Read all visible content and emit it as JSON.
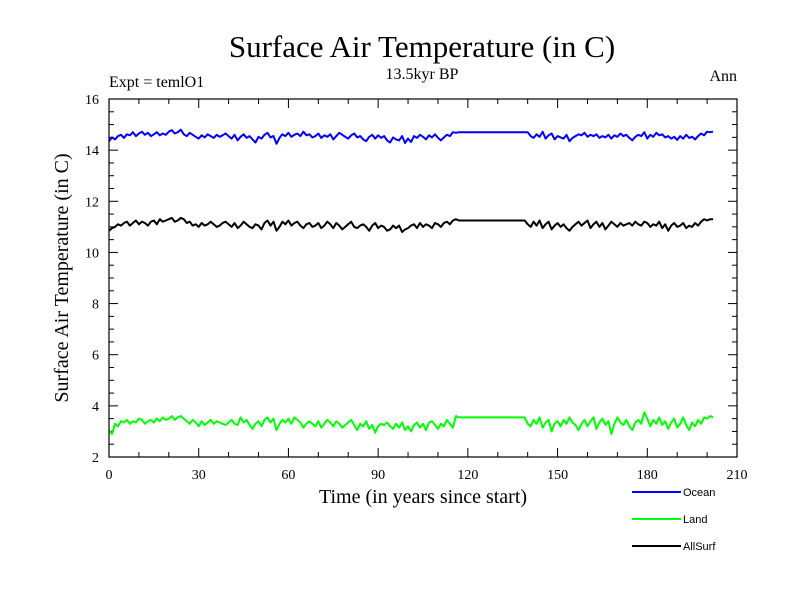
{
  "chart_data": {
    "type": "line",
    "title": "Surface Air Temperature (in C)",
    "subtitle": "13.5kyr BP",
    "left_note": "Expt = temlO1",
    "right_note": "Ann",
    "xlabel": "Time (in years since start)",
    "ylabel": "Surface Air Temperature (in C)",
    "xlim": [
      0,
      210
    ],
    "ylim": [
      2,
      16
    ],
    "xticks": [
      0,
      30,
      60,
      90,
      120,
      150,
      180,
      210
    ],
    "yticks": [
      2,
      4,
      6,
      8,
      10,
      12,
      14,
      16
    ],
    "x_minor_step": 10,
    "y_minor_step": 0.5,
    "x_start": 0,
    "x_step": 1,
    "legend_position": "bottom-right outside",
    "series": [
      {
        "name": "Ocean",
        "color": "#0000ff",
        "values": [
          14.35,
          14.5,
          14.42,
          14.55,
          14.6,
          14.48,
          14.62,
          14.58,
          14.7,
          14.55,
          14.65,
          14.72,
          14.6,
          14.68,
          14.55,
          14.62,
          14.7,
          14.58,
          14.65,
          14.6,
          14.72,
          14.78,
          14.65,
          14.7,
          14.8,
          14.62,
          14.55,
          14.68,
          14.6,
          14.52,
          14.45,
          14.58,
          14.5,
          14.62,
          14.55,
          14.48,
          14.6,
          14.52,
          14.58,
          14.65,
          14.55,
          14.45,
          14.6,
          14.38,
          14.52,
          14.62,
          14.48,
          14.55,
          14.42,
          14.3,
          14.52,
          14.45,
          14.6,
          14.68,
          14.5,
          14.55,
          14.25,
          14.48,
          14.62,
          14.55,
          14.68,
          14.52,
          14.6,
          14.65,
          14.55,
          14.72,
          14.58,
          14.62,
          14.5,
          14.55,
          14.65,
          14.48,
          14.58,
          14.52,
          14.62,
          14.42,
          14.55,
          14.68,
          14.6,
          14.52,
          14.45,
          14.58,
          14.65,
          14.5,
          14.55,
          14.42,
          14.35,
          14.52,
          14.6,
          14.45,
          14.58,
          14.48,
          14.55,
          14.38,
          14.3,
          14.5,
          14.42,
          14.38,
          14.55,
          14.28,
          14.45,
          14.32,
          14.55,
          14.48,
          14.6,
          14.52,
          14.42,
          14.58,
          14.5,
          14.62,
          14.48,
          14.38,
          14.5,
          14.6,
          14.55,
          14.7,
          14.68,
          14.7,
          14.7,
          14.7,
          14.7,
          14.7,
          14.7,
          14.7,
          14.7,
          14.7,
          14.7,
          14.7,
          14.7,
          14.7,
          14.7,
          14.7,
          14.7,
          14.7,
          14.7,
          14.7,
          14.7,
          14.7,
          14.7,
          14.7,
          14.7,
          14.55,
          14.48,
          14.62,
          14.52,
          14.72,
          14.45,
          14.58,
          14.65,
          14.42,
          14.55,
          14.5,
          14.45,
          14.6,
          14.35,
          14.48,
          14.55,
          14.62,
          14.58,
          14.68,
          14.52,
          14.6,
          14.55,
          14.62,
          14.48,
          14.55,
          14.5,
          14.6,
          14.45,
          14.58,
          14.52,
          14.65,
          14.55,
          14.6,
          14.48,
          14.38,
          14.52,
          14.6,
          14.55,
          14.7,
          14.45,
          14.6,
          14.52,
          14.68,
          14.58,
          14.62,
          14.5,
          14.55,
          14.45,
          14.52,
          14.4,
          14.55,
          14.45,
          14.6,
          14.48,
          14.52,
          14.42,
          14.55,
          14.65,
          14.58,
          14.72,
          14.7,
          14.72
        ]
      },
      {
        "name": "Land",
        "color": "#00ff00",
        "values": [
          3.05,
          2.9,
          3.3,
          3.2,
          3.4,
          3.35,
          3.45,
          3.3,
          3.4,
          3.35,
          3.5,
          3.45,
          3.3,
          3.4,
          3.45,
          3.35,
          3.5,
          3.4,
          3.55,
          3.45,
          3.5,
          3.6,
          3.45,
          3.55,
          3.6,
          3.5,
          3.4,
          3.3,
          3.45,
          3.35,
          3.2,
          3.4,
          3.25,
          3.35,
          3.45,
          3.3,
          3.4,
          3.35,
          3.3,
          3.25,
          3.35,
          3.45,
          3.3,
          3.25,
          3.55,
          3.35,
          3.45,
          3.25,
          3.1,
          3.3,
          3.4,
          3.2,
          3.45,
          3.55,
          3.35,
          3.5,
          3.05,
          3.3,
          3.45,
          3.35,
          3.5,
          3.3,
          3.55,
          3.45,
          3.35,
          3.15,
          3.3,
          3.4,
          3.3,
          3.2,
          3.4,
          3.15,
          3.3,
          3.45,
          3.35,
          3.2,
          3.4,
          3.3,
          3.15,
          3.25,
          3.35,
          3.45,
          3.25,
          3.05,
          3.3,
          3.2,
          3.4,
          3.1,
          3.25,
          2.95,
          3.2,
          3.3,
          3.25,
          3.35,
          3.2,
          3.1,
          3.3,
          3.15,
          3.35,
          3.05,
          3.2,
          3.0,
          3.25,
          3.35,
          3.15,
          3.3,
          3.05,
          3.35,
          3.4,
          3.25,
          3.1,
          3.3,
          3.2,
          3.45,
          3.3,
          3.15,
          3.6,
          3.55,
          3.55,
          3.55,
          3.55,
          3.55,
          3.55,
          3.55,
          3.55,
          3.55,
          3.55,
          3.55,
          3.55,
          3.55,
          3.55,
          3.55,
          3.55,
          3.55,
          3.55,
          3.55,
          3.55,
          3.55,
          3.55,
          3.55,
          3.3,
          3.2,
          3.45,
          3.3,
          3.55,
          3.15,
          3.35,
          3.45,
          3.0,
          3.3,
          3.4,
          3.2,
          3.45,
          3.3,
          3.55,
          3.35,
          3.25,
          3.05,
          3.3,
          3.45,
          3.2,
          3.4,
          3.55,
          3.1,
          3.35,
          3.5,
          3.25,
          3.4,
          2.9,
          3.3,
          3.55,
          3.35,
          3.25,
          3.45,
          3.2,
          3.05,
          3.35,
          3.45,
          3.3,
          3.75,
          3.5,
          3.2,
          3.45,
          3.3,
          3.55,
          3.25,
          3.4,
          3.1,
          3.35,
          3.5,
          3.15,
          3.3,
          3.55,
          3.25,
          3.05,
          3.35,
          3.2,
          3.45,
          3.3,
          3.55,
          3.5,
          3.6,
          3.55
        ]
      },
      {
        "name": "AllSurf",
        "color": "#000000",
        "values": [
          10.85,
          10.95,
          11.0,
          11.1,
          11.05,
          11.15,
          11.2,
          11.05,
          11.15,
          11.25,
          11.1,
          11.2,
          11.15,
          11.05,
          11.2,
          11.25,
          11.1,
          11.3,
          11.2,
          11.25,
          11.3,
          11.35,
          11.2,
          11.25,
          11.35,
          11.3,
          11.15,
          11.2,
          11.05,
          11.1,
          11.0,
          11.15,
          11.05,
          11.1,
          11.2,
          11.1,
          11.0,
          11.05,
          11.15,
          11.2,
          11.1,
          11.0,
          11.15,
          10.95,
          11.05,
          11.2,
          11.1,
          11.0,
          10.95,
          11.1,
          11.05,
          10.9,
          11.15,
          11.25,
          11.05,
          11.2,
          10.85,
          11.0,
          11.2,
          11.1,
          11.25,
          11.05,
          11.15,
          11.2,
          11.05,
          10.95,
          11.1,
          11.15,
          11.0,
          11.05,
          11.15,
          10.95,
          11.05,
          11.2,
          11.1,
          10.95,
          11.15,
          11.05,
          10.9,
          11.0,
          11.1,
          11.2,
          11.0,
          10.95,
          11.05,
          11.1,
          11.0,
          10.85,
          11.05,
          11.15,
          10.95,
          11.05,
          11.0,
          10.85,
          10.9,
          11.05,
          10.95,
          11.05,
          10.8,
          10.9,
          10.95,
          11.05,
          11.1,
          10.95,
          11.15,
          11.0,
          11.1,
          11.05,
          10.95,
          11.15,
          11.1,
          11.0,
          11.15,
          11.2,
          11.1,
          11.25,
          11.3,
          11.25,
          11.25,
          11.25,
          11.25,
          11.25,
          11.25,
          11.25,
          11.25,
          11.25,
          11.25,
          11.25,
          11.25,
          11.25,
          11.25,
          11.25,
          11.25,
          11.25,
          11.25,
          11.25,
          11.25,
          11.25,
          11.25,
          11.25,
          11.1,
          11.0,
          11.2,
          11.05,
          11.25,
          10.95,
          11.1,
          11.2,
          10.9,
          11.05,
          11.15,
          11.0,
          11.1,
          10.95,
          10.85,
          11.0,
          11.1,
          11.2,
          11.05,
          11.15,
          11.25,
          10.95,
          11.1,
          11.2,
          11.0,
          11.15,
          10.9,
          11.05,
          11.2,
          11.1,
          11.0,
          11.15,
          11.05,
          11.1,
          11.15,
          11.05,
          11.2,
          11.1,
          11.05,
          11.2,
          11.15,
          11.0,
          11.1,
          11.05,
          11.2,
          10.95,
          11.1,
          10.85,
          11.05,
          11.15,
          11.0,
          11.05,
          11.15,
          10.95,
          11.05,
          11.0,
          11.15,
          11.05,
          11.2,
          11.3,
          11.25,
          11.3,
          11.3
        ]
      }
    ]
  }
}
